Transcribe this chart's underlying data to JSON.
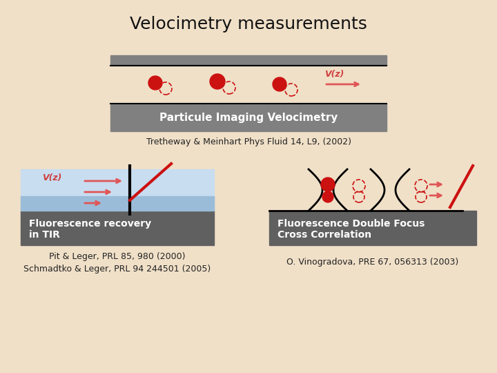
{
  "title": "Velocimetry measurements",
  "bg_color": "#f0e0c8",
  "title_fontsize": 18,
  "title_color": "#111111",
  "gray_color": "#808080",
  "gray_dark": "#606060",
  "white": "#ffffff",
  "arrow_color": "#e05555",
  "vz_color": "#d04040",
  "red_color": "#cc1111",
  "blue_light": "#c8ddf0",
  "blue_mid": "#9bbcd8",
  "piv": {
    "label": "Particule Imaging Velocimetry",
    "citation": "Tretheway & Meinhart Phys Fluid 14, L9, (2002)"
  },
  "frap": {
    "label1": "Fluorescence recovery",
    "label2": "in TIR",
    "citation1": "Pit & Leger, PRL 85, 980 (2000)",
    "citation2": "Schmadtko & Leger, PRL 94 244501 (2005)"
  },
  "fcs": {
    "label1": "Fluorescence Double Focus",
    "label2": "Cross Correlation",
    "citation": "O. Vinogradova, PRE 67, 056313 (2003)"
  }
}
